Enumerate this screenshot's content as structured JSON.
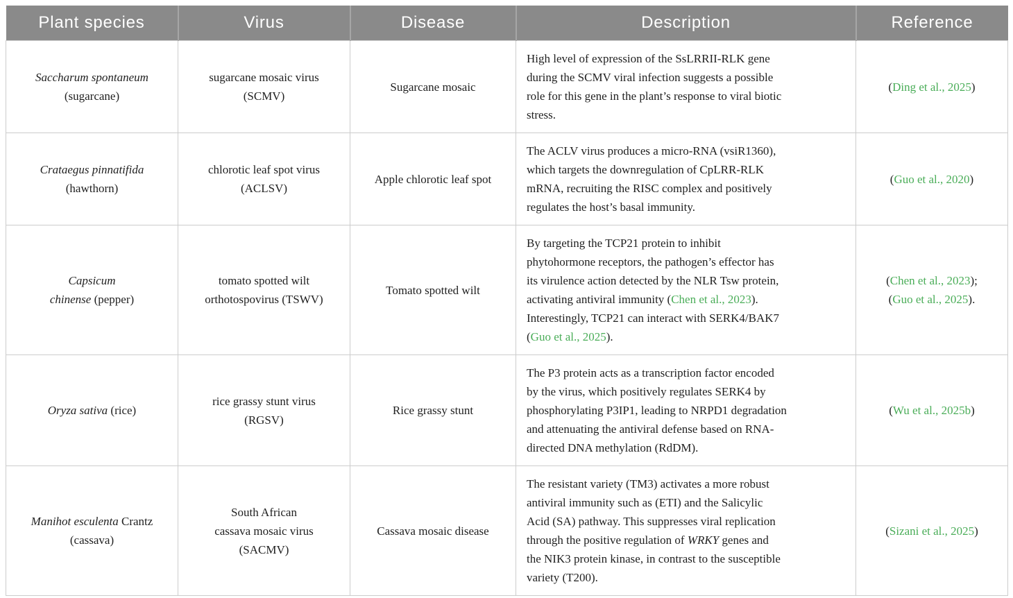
{
  "table": {
    "colors": {
      "header_bg": "#8a8a8a",
      "header_text": "#ffffff",
      "border": "#cccccc",
      "text": "#1f1f1f",
      "citation": "#4aad58"
    },
    "columns": [
      {
        "label": "Plant species"
      },
      {
        "label": "Virus"
      },
      {
        "label": "Disease"
      },
      {
        "label": "Description"
      },
      {
        "label": "Reference"
      }
    ],
    "rows": [
      {
        "species": {
          "lines": [
            [
              {
                "t": "Saccharum spontaneum",
                "i": true
              }
            ],
            [
              {
                "t": "(sugarcane)"
              }
            ]
          ]
        },
        "virus": {
          "lines": [
            [
              {
                "t": "sugarcane mosaic virus"
              }
            ],
            [
              {
                "t": "(SCMV)"
              }
            ]
          ]
        },
        "disease": {
          "lines": [
            [
              {
                "t": "Sugarcane mosaic"
              }
            ]
          ]
        },
        "description": {
          "lines": [
            [
              {
                "t": "High level of expression of the SsLRRII-RLK gene"
              }
            ],
            [
              {
                "t": "during the SCMV viral infection suggests a possible"
              }
            ],
            [
              {
                "t": "role for this gene in the plant’s response to viral biotic"
              }
            ],
            [
              {
                "t": "stress."
              }
            ]
          ]
        },
        "reference": {
          "lines": [
            [
              {
                "t": "("
              },
              {
                "t": "Ding et al., 2025",
                "c": true
              },
              {
                "t": ")"
              }
            ]
          ]
        }
      },
      {
        "species": {
          "lines": [
            [
              {
                "t": "Crataegus pinnatifida",
                "i": true
              }
            ],
            [
              {
                "t": "(hawthorn)"
              }
            ]
          ]
        },
        "virus": {
          "lines": [
            [
              {
                "t": "chlorotic leaf spot virus"
              }
            ],
            [
              {
                "t": "(ACLSV)"
              }
            ]
          ]
        },
        "disease": {
          "lines": [
            [
              {
                "t": "Apple chlorotic leaf spot"
              }
            ]
          ]
        },
        "description": {
          "lines": [
            [
              {
                "t": "The ACLV virus produces a micro-RNA (vsiR1360),"
              }
            ],
            [
              {
                "t": "which targets the downregulation of CpLRR-RLK"
              }
            ],
            [
              {
                "t": "mRNA, recruiting the RISC complex and positively"
              }
            ],
            [
              {
                "t": "regulates the host’s basal immunity."
              }
            ]
          ]
        },
        "reference": {
          "lines": [
            [
              {
                "t": "("
              },
              {
                "t": "Guo et al., 2020",
                "c": true
              },
              {
                "t": ")"
              }
            ]
          ]
        }
      },
      {
        "species": {
          "lines": [
            [
              {
                "t": "Capsicum",
                "i": true
              }
            ],
            [
              {
                "t": "chinense",
                "i": true
              },
              {
                "t": " (pepper)"
              }
            ]
          ]
        },
        "virus": {
          "lines": [
            [
              {
                "t": "tomato spotted wilt"
              }
            ],
            [
              {
                "t": "orthotospovirus (TSWV)"
              }
            ]
          ]
        },
        "disease": {
          "lines": [
            [
              {
                "t": "Tomato spotted wilt"
              }
            ]
          ]
        },
        "description": {
          "lines": [
            [
              {
                "t": "By targeting the TCP21 protein to inhibit"
              }
            ],
            [
              {
                "t": "phytohormone receptors, the pathogen’s effector has"
              }
            ],
            [
              {
                "t": "its virulence action detected by the NLR Tsw protein,"
              }
            ],
            [
              {
                "t": "activating antiviral immunity ("
              },
              {
                "t": "Chen et al., 2023",
                "c": true
              },
              {
                "t": ")."
              }
            ],
            [
              {
                "t": "Interestingly, TCP21 can interact with SERK4/BAK7"
              }
            ],
            [
              {
                "t": "("
              },
              {
                "t": "Guo et al., 2025",
                "c": true
              },
              {
                "t": ")."
              }
            ]
          ]
        },
        "reference": {
          "lines": [
            [
              {
                "t": "("
              },
              {
                "t": "Chen et al., 2023",
                "c": true
              },
              {
                "t": ");"
              }
            ],
            [
              {
                "t": "("
              },
              {
                "t": "Guo et al., 2025",
                "c": true
              },
              {
                "t": ")."
              }
            ]
          ]
        }
      },
      {
        "species": {
          "lines": [
            [
              {
                "t": "Oryza sativa",
                "i": true
              },
              {
                "t": " (rice)"
              }
            ]
          ]
        },
        "virus": {
          "lines": [
            [
              {
                "t": "rice grassy stunt virus"
              }
            ],
            [
              {
                "t": "(RGSV)"
              }
            ]
          ]
        },
        "disease": {
          "lines": [
            [
              {
                "t": "Rice grassy stunt"
              }
            ]
          ]
        },
        "description": {
          "lines": [
            [
              {
                "t": "The P3 protein acts as a transcription factor encoded"
              }
            ],
            [
              {
                "t": "by the virus, which positively regulates SERK4 by"
              }
            ],
            [
              {
                "t": "phosphorylating P3IP1, leading to NRPD1 degradation"
              }
            ],
            [
              {
                "t": "and attenuating the antiviral defense based on RNA-"
              }
            ],
            [
              {
                "t": "directed DNA methylation (RdDM)."
              }
            ]
          ]
        },
        "reference": {
          "lines": [
            [
              {
                "t": "("
              },
              {
                "t": "Wu et al., 2025b",
                "c": true
              },
              {
                "t": ")"
              }
            ]
          ]
        }
      },
      {
        "species": {
          "lines": [
            [
              {
                "t": "Manihot esculenta",
                "i": true
              },
              {
                "t": " Crantz"
              }
            ],
            [
              {
                "t": "(cassava)"
              }
            ]
          ]
        },
        "virus": {
          "lines": [
            [
              {
                "t": "South African"
              }
            ],
            [
              {
                "t": "cassava mosaic virus"
              }
            ],
            [
              {
                "t": "(SACMV)"
              }
            ]
          ]
        },
        "disease": {
          "lines": [
            [
              {
                "t": "Cassava mosaic disease"
              }
            ]
          ]
        },
        "description": {
          "lines": [
            [
              {
                "t": "The resistant variety (TM3) activates a more robust"
              }
            ],
            [
              {
                "t": "antiviral immunity such as (ETI) and the Salicylic"
              }
            ],
            [
              {
                "t": "Acid (SA) pathway. This suppresses viral replication"
              }
            ],
            [
              {
                "t": "through the positive regulation of "
              },
              {
                "t": "WRKY",
                "i": true
              },
              {
                "t": " genes and"
              }
            ],
            [
              {
                "t": "the NIK3 protein kinase, in contrast to the susceptible"
              }
            ],
            [
              {
                "t": "variety (T200)."
              }
            ]
          ]
        },
        "reference": {
          "lines": [
            [
              {
                "t": "("
              },
              {
                "t": "Sizani et al., 2025",
                "c": true
              },
              {
                "t": ")"
              }
            ]
          ]
        }
      }
    ]
  }
}
